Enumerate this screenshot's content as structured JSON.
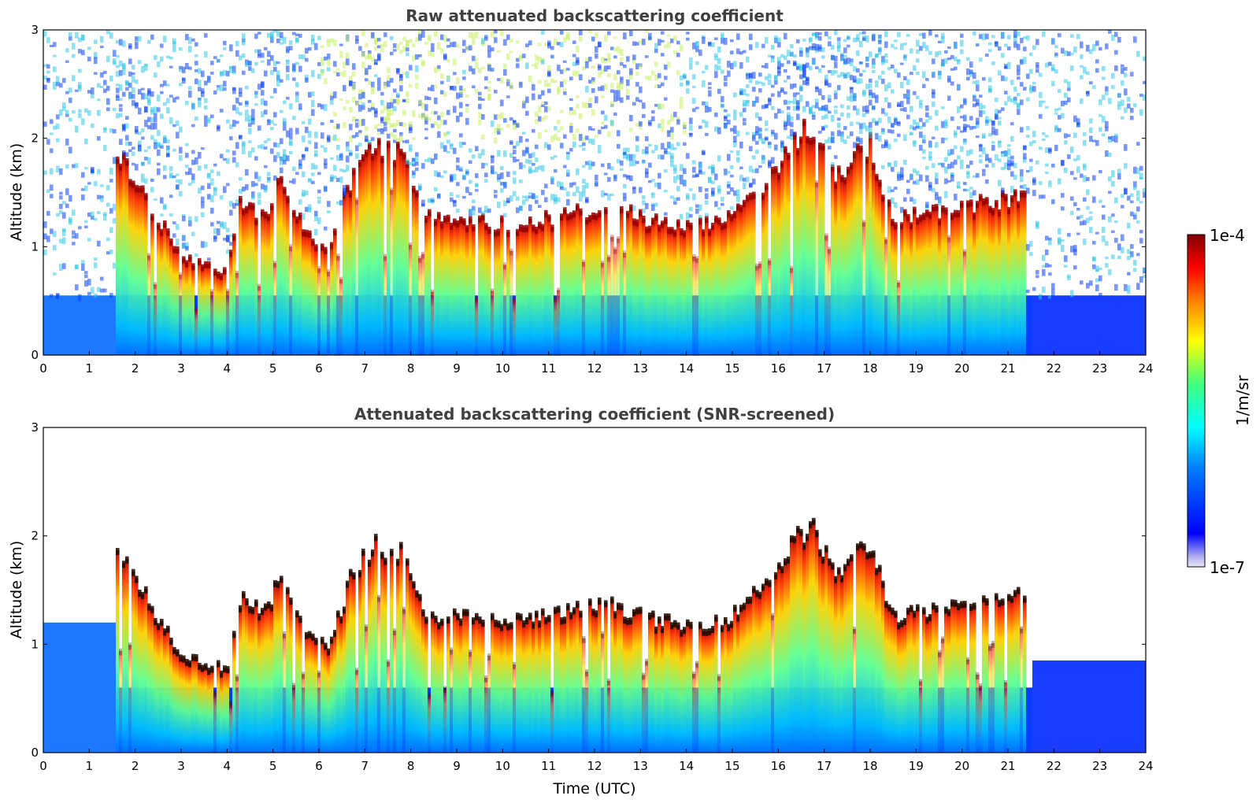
{
  "chart_data": [
    {
      "type": "heatmap",
      "title": "Raw attenuated backscattering coefficient",
      "xlabel": "",
      "ylabel": "Altitude (km)",
      "xlim": [
        0,
        24
      ],
      "ylim": [
        0,
        3
      ],
      "xticks": [
        "0",
        "1",
        "2",
        "3",
        "4",
        "5",
        "6",
        "7",
        "8",
        "9",
        "10",
        "11",
        "12",
        "13",
        "14",
        "15",
        "16",
        "17",
        "18",
        "19",
        "20",
        "21",
        "22",
        "23",
        "24"
      ],
      "yticks": [
        "0",
        "1",
        "2",
        "3"
      ],
      "colorscale": "jet",
      "noise_floor": "speckled blue/cyan everywhere above the cloud layer",
      "cloud_top_km": [
        {
          "x": 1.6,
          "y": 1.9
        },
        {
          "x": 2.0,
          "y": 1.7
        },
        {
          "x": 2.5,
          "y": 1.3
        },
        {
          "x": 3.0,
          "y": 0.95
        },
        {
          "x": 3.5,
          "y": 0.85
        },
        {
          "x": 4.0,
          "y": 0.8
        },
        {
          "x": 4.3,
          "y": 1.5
        },
        {
          "x": 4.8,
          "y": 1.3
        },
        {
          "x": 5.2,
          "y": 1.7
        },
        {
          "x": 5.8,
          "y": 1.1
        },
        {
          "x": 6.2,
          "y": 1.0
        },
        {
          "x": 6.8,
          "y": 1.8
        },
        {
          "x": 7.3,
          "y": 2.0
        },
        {
          "x": 7.8,
          "y": 1.9
        },
        {
          "x": 8.3,
          "y": 1.3
        },
        {
          "x": 9.0,
          "y": 1.3
        },
        {
          "x": 10.0,
          "y": 1.25
        },
        {
          "x": 11.0,
          "y": 1.3
        },
        {
          "x": 12.0,
          "y": 1.4
        },
        {
          "x": 12.5,
          "y": 1.4
        },
        {
          "x": 13.0,
          "y": 1.3
        },
        {
          "x": 14.0,
          "y": 1.2
        },
        {
          "x": 15.0,
          "y": 1.3
        },
        {
          "x": 16.0,
          "y": 1.8
        },
        {
          "x": 16.7,
          "y": 2.2
        },
        {
          "x": 17.2,
          "y": 1.7
        },
        {
          "x": 18.0,
          "y": 2.0
        },
        {
          "x": 18.5,
          "y": 1.3
        },
        {
          "x": 19.5,
          "y": 1.35
        },
        {
          "x": 20.5,
          "y": 1.45
        },
        {
          "x": 21.4,
          "y": 1.5
        }
      ]
    },
    {
      "type": "heatmap",
      "title": "Attenuated backscattering coefficient (SNR-screened)",
      "xlabel": "Time (UTC)",
      "ylabel": "Altitude (km)",
      "xlim": [
        0,
        24
      ],
      "ylim": [
        0,
        3
      ],
      "xticks": [
        "0",
        "1",
        "2",
        "3",
        "4",
        "5",
        "6",
        "7",
        "8",
        "9",
        "10",
        "11",
        "12",
        "13",
        "14",
        "15",
        "16",
        "17",
        "18",
        "19",
        "20",
        "21",
        "22",
        "23",
        "24"
      ],
      "yticks": [
        "0",
        "1",
        "2",
        "3"
      ],
      "colorscale": "jet",
      "screened_region": "noise above the cloud layer removed (white)"
    }
  ],
  "colorbar": {
    "max_label": "1e-4",
    "min_label": "1e-7",
    "unit_label": "1/m/sr"
  }
}
